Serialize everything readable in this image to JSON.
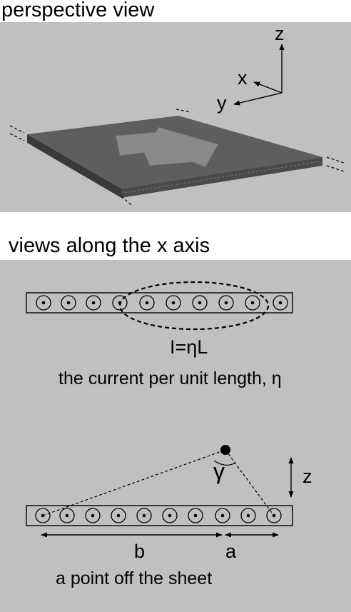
{
  "headings": {
    "perspective": "perspective view",
    "along_x": "views along the x axis"
  },
  "axes": {
    "x": "x",
    "y": "y",
    "z": "z"
  },
  "sheet_view": {
    "current_label": "I=ηL",
    "caption": "the current per unit length, η"
  },
  "point_view": {
    "angle_label": "γ",
    "z_label": "z",
    "b_label": "b",
    "a_label": "a",
    "caption": "a point off the sheet"
  },
  "colors": {
    "panel": "#c0c0c0",
    "sheet_top": "#5e5e5e",
    "sheet_edge": "#3a3a3a",
    "arrow": "#8a8a8a"
  }
}
